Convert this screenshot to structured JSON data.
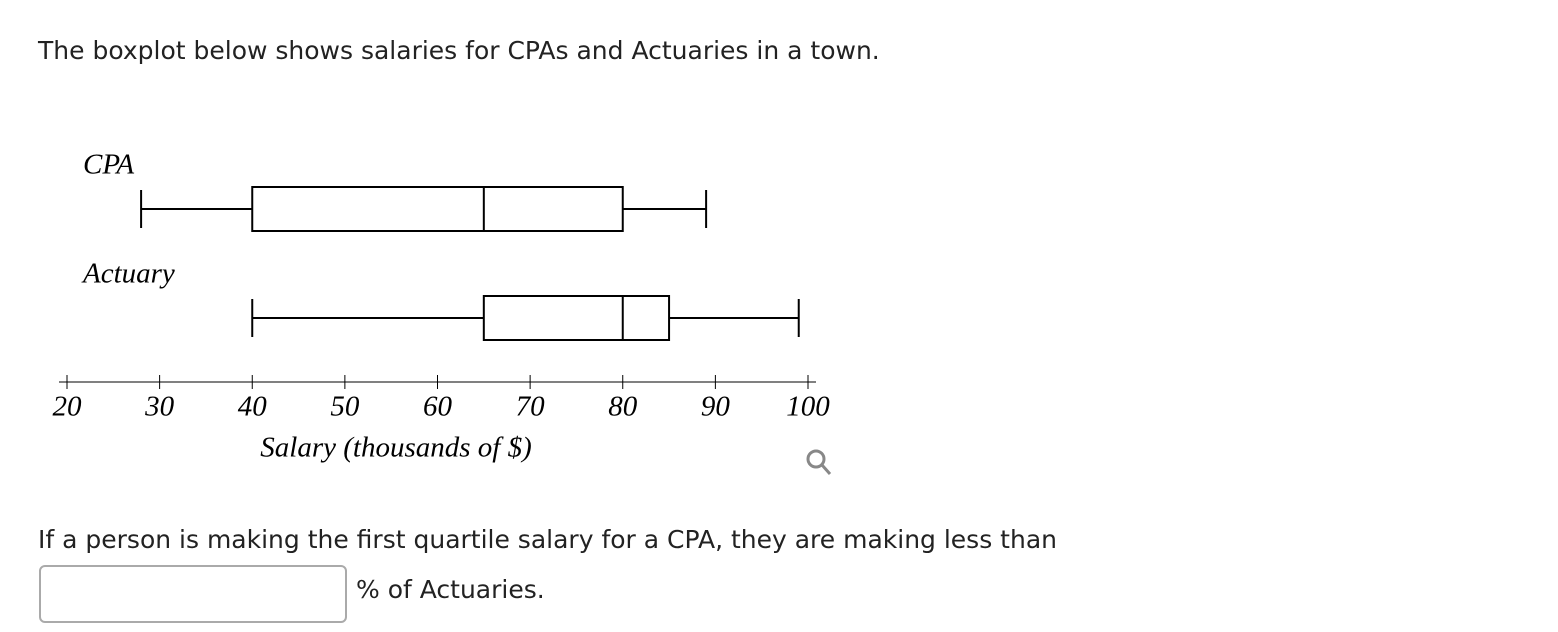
{
  "question": "The boxplot below shows salaries for CPAs and Actuaries in a town.",
  "chart_data": {
    "type": "boxplot",
    "orientation": "horizontal",
    "x_label": "Salary (thousands of $)",
    "xlim": [
      20,
      100
    ],
    "xticks": [
      20,
      30,
      40,
      50,
      60,
      70,
      80,
      90,
      100
    ],
    "color": "#000000",
    "series": [
      {
        "name": "CPA",
        "min": 28,
        "q1": 40,
        "median": 65,
        "q3": 80,
        "max": 89
      },
      {
        "name": "Actuary",
        "min": 40,
        "q1": 65,
        "median": 80,
        "q3": 85,
        "max": 99
      }
    ]
  },
  "prompt": "If a person is making the first quartile salary for a CPA, they are making less than",
  "answer_suffix": "% of Actuaries."
}
